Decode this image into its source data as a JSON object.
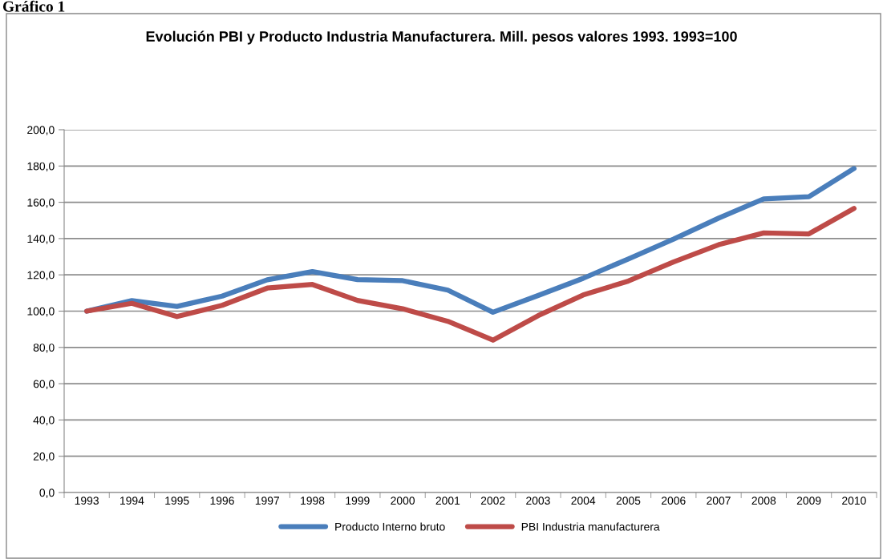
{
  "chart_data": {
    "type": "line",
    "title": "Evolución PBI y Producto Industria Manufacturera. Mill. pesos valores 1993. 1993=100",
    "annotations": [
      "Gráfico 1"
    ],
    "categories": [
      "1993",
      "1994",
      "1995",
      "1996",
      "1997",
      "1998",
      "1999",
      "2000",
      "2001",
      "2002",
      "2003",
      "2004",
      "2005",
      "2006",
      "2007",
      "2008",
      "2009",
      "2010"
    ],
    "series": [
      {
        "name": "Producto Interno bruto",
        "color": "#4a7ebb",
        "values": [
          100,
          105.8,
          102.6,
          108.3,
          117.3,
          121.8,
          117.4,
          116.8,
          111.6,
          99.4,
          108.6,
          118.1,
          128.8,
          139.7,
          151.3,
          161.9,
          163.1,
          178.6
        ]
      },
      {
        "name": "PBI Industria manufacturera",
        "color": "#be4b48",
        "values": [
          100,
          104.3,
          97.0,
          103.2,
          112.7,
          114.7,
          105.9,
          101.3,
          94.4,
          84.0,
          97.5,
          108.9,
          116.6,
          127.1,
          136.6,
          143.1,
          142.6,
          156.6
        ]
      }
    ],
    "ylim": [
      0,
      200
    ],
    "yticks": [
      {
        "value": 0,
        "label": "0,0"
      },
      {
        "value": 20,
        "label": "20,0"
      },
      {
        "value": 40,
        "label": "40,0"
      },
      {
        "value": 60,
        "label": "60,0"
      },
      {
        "value": 80,
        "label": "80,0"
      },
      {
        "value": 100,
        "label": "100,0"
      },
      {
        "value": 120,
        "label": "120,0"
      },
      {
        "value": 140,
        "label": "140,0"
      },
      {
        "value": 160,
        "label": "160,0"
      },
      {
        "value": 180,
        "label": "180,0"
      },
      {
        "value": 200,
        "label": "200,0"
      }
    ],
    "grid": "y",
    "legend": "bottom",
    "marker": "none",
    "line_style": "solid"
  }
}
